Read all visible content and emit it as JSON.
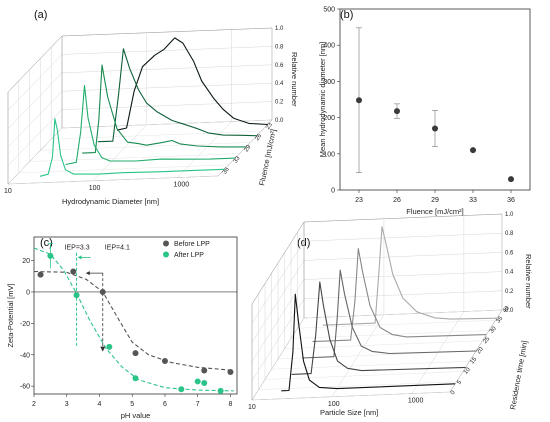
{
  "panels": {
    "a": {
      "label": "(a)"
    },
    "b": {
      "label": "(b)"
    },
    "c": {
      "label": "(c)"
    },
    "d": {
      "label": "(d)"
    }
  },
  "chart_data": [
    {
      "id": "a",
      "type": "line",
      "projection": "3d-waterfall",
      "title": "",
      "xlabel": "Hydrodynamic Diameter [nm]",
      "ylabel": "Fluence [mJ/cm²]",
      "zlabel": "Relative number",
      "x_scale": "log",
      "x_ticks": [
        "10",
        "100",
        "1000"
      ],
      "y_ticks": [
        "23",
        "26",
        "29",
        "33",
        "36"
      ],
      "z_ticks": [
        "0.0",
        "0.2",
        "0.4",
        "0.6",
        "0.8",
        "1.0"
      ],
      "z_range": [
        0,
        1
      ],
      "series": [
        {
          "fluence": "36",
          "color": "#2bc488",
          "points": [
            [
              20,
              0
            ],
            [
              25,
              0.02
            ],
            [
              28,
              0.2
            ],
            [
              30,
              0.62
            ],
            [
              32,
              0.5
            ],
            [
              35,
              0.22
            ],
            [
              40,
              0.06
            ],
            [
              50,
              0.01
            ],
            [
              100,
              0
            ],
            [
              200,
              0.005
            ],
            [
              500,
              0
            ],
            [
              1000,
              0
            ],
            [
              3000,
              0
            ]
          ]
        },
        {
          "fluence": "33",
          "color": "#1fae6b",
          "points": [
            [
              30,
              0
            ],
            [
              40,
              0.02
            ],
            [
              45,
              0.35
            ],
            [
              50,
              0.85
            ],
            [
              55,
              0.5
            ],
            [
              65,
              0.2
            ],
            [
              80,
              0.06
            ],
            [
              100,
              0.02
            ],
            [
              200,
              0.01
            ],
            [
              400,
              0.02
            ],
            [
              700,
              0.01
            ],
            [
              1500,
              0
            ],
            [
              3000,
              0
            ]
          ]
        },
        {
          "fluence": "29",
          "color": "#178a50",
          "points": [
            [
              35,
              0
            ],
            [
              50,
              0
            ],
            [
              55,
              0.35
            ],
            [
              60,
              0.95
            ],
            [
              70,
              0.6
            ],
            [
              90,
              0.25
            ],
            [
              120,
              0.1
            ],
            [
              160,
              0.08
            ],
            [
              200,
              0.06
            ],
            [
              300,
              0.08
            ],
            [
              400,
              0.1
            ],
            [
              500,
              0.06
            ],
            [
              800,
              0.03
            ],
            [
              1500,
              0.01
            ],
            [
              3000,
              0
            ]
          ]
        },
        {
          "fluence": "26",
          "color": "#10603a",
          "points": [
            [
              40,
              0
            ],
            [
              60,
              0
            ],
            [
              70,
              0.5
            ],
            [
              80,
              1.0
            ],
            [
              95,
              0.78
            ],
            [
              120,
              0.55
            ],
            [
              150,
              0.4
            ],
            [
              200,
              0.3
            ],
            [
              300,
              0.2
            ],
            [
              400,
              0.16
            ],
            [
              600,
              0.1
            ],
            [
              800,
              0.05
            ],
            [
              1200,
              0.02
            ],
            [
              2000,
              0.01
            ],
            [
              3000,
              0
            ]
          ]
        },
        {
          "fluence": "23",
          "color": "#0b1a12",
          "points": [
            [
              50,
              0
            ],
            [
              65,
              0.02
            ],
            [
              80,
              0.42
            ],
            [
              100,
              0.68
            ],
            [
              140,
              0.8
            ],
            [
              180,
              0.86
            ],
            [
              240,
              0.98
            ],
            [
              300,
              0.92
            ],
            [
              400,
              0.72
            ],
            [
              500,
              0.5
            ],
            [
              700,
              0.3
            ],
            [
              900,
              0.18
            ],
            [
              1200,
              0.08
            ],
            [
              1800,
              0.02
            ],
            [
              3000,
              0
            ]
          ]
        }
      ]
    },
    {
      "id": "b",
      "type": "scatter",
      "title": "",
      "xlabel": "Fluence [mJ/cm²]",
      "ylabel": "Mean hydrodynamic diameter [nm]",
      "ylim": [
        0,
        500
      ],
      "y_ticks": [
        "0",
        "100",
        "200",
        "300",
        "400",
        "500"
      ],
      "categories": [
        "23",
        "26",
        "29",
        "33",
        "36"
      ],
      "values": [
        248,
        218,
        170,
        110,
        30
      ],
      "error": [
        200,
        20,
        50,
        0,
        0
      ],
      "color": "#3a3a3a"
    },
    {
      "id": "c",
      "type": "scatter",
      "title": "",
      "xlabel": "pH value",
      "ylabel": "Zeta-Potential [mV]",
      "xlim": [
        2,
        8.2
      ],
      "ylim": [
        -65,
        35
      ],
      "x_ticks": [
        "2",
        "3",
        "4",
        "5",
        "6",
        "7",
        "8"
      ],
      "y_ticks": [
        "20",
        "0",
        "-20",
        "-40",
        "-60"
      ],
      "legend_position": "top-right",
      "annotations": [
        {
          "text": "IEP=3.3",
          "x": 3.3,
          "color": "#2bc488"
        },
        {
          "text": "IEP=4.1",
          "x": 4.1,
          "color": "#222222"
        }
      ],
      "series": [
        {
          "name": "Before LPP",
          "color": "#555555",
          "x": [
            2.2,
            3.2,
            4.1,
            5.1,
            6.0,
            7.2,
            8.0
          ],
          "y": [
            11,
            13,
            0,
            -39,
            -44,
            -50,
            -51
          ],
          "fit": [
            [
              2.0,
              13
            ],
            [
              3.0,
              12.5
            ],
            [
              3.6,
              8
            ],
            [
              4.1,
              0
            ],
            [
              4.6,
              -18
            ],
            [
              5.0,
              -32
            ],
            [
              5.5,
              -40
            ],
            [
              6.2,
              -45
            ],
            [
              7.0,
              -48
            ],
            [
              8.1,
              -50
            ]
          ]
        },
        {
          "name": "After LPP",
          "color": "#2bc488",
          "x": [
            2.5,
            3.3,
            4.3,
            5.1,
            6.5,
            7.0,
            7.2,
            7.7
          ],
          "y": [
            23,
            -2,
            -35,
            -55,
            -62,
            -57,
            -58,
            -63
          ],
          "y_err": [
            8,
            0,
            0,
            0,
            0,
            0,
            0,
            0
          ],
          "fit": [
            [
              2.0,
              28
            ],
            [
              2.5,
              24
            ],
            [
              2.9,
              14
            ],
            [
              3.3,
              -1
            ],
            [
              3.7,
              -18
            ],
            [
              4.2,
              -36
            ],
            [
              4.7,
              -48
            ],
            [
              5.2,
              -56
            ],
            [
              6.0,
              -61
            ],
            [
              7.0,
              -62.5
            ],
            [
              8.1,
              -63
            ]
          ]
        }
      ]
    },
    {
      "id": "d",
      "type": "line",
      "projection": "3d-waterfall",
      "title": "",
      "xlabel": "Particle Size [nm]",
      "ylabel": "Residence time [min]",
      "zlabel": "Relative number",
      "x_scale": "log",
      "x_ticks": [
        "10",
        "100",
        "1000"
      ],
      "y_ticks": [
        "0",
        "5",
        "10",
        "15",
        "20",
        "25",
        "30",
        "35",
        "40"
      ],
      "z_ticks": [
        "0.0",
        "0.2",
        "0.4",
        "0.6",
        "0.8",
        "1.0"
      ],
      "z_range": [
        0,
        1
      ],
      "series": [
        {
          "time": "0",
          "color": "#111111",
          "points": [
            [
              20,
              0
            ],
            [
              25,
              0
            ],
            [
              28,
              0.4
            ],
            [
              30,
              1.0
            ],
            [
              33,
              0.7
            ],
            [
              38,
              0.3
            ],
            [
              45,
              0.1
            ],
            [
              60,
              0.02
            ],
            [
              100,
              0
            ],
            [
              3000,
              0
            ]
          ]
        },
        {
          "time": "10",
          "color": "#444444",
          "points": [
            [
              20,
              0
            ],
            [
              35,
              0
            ],
            [
              40,
              0.4
            ],
            [
              45,
              0.95
            ],
            [
              50,
              0.7
            ],
            [
              60,
              0.35
            ],
            [
              75,
              0.12
            ],
            [
              100,
              0.04
            ],
            [
              150,
              0.01
            ],
            [
              3000,
              0
            ]
          ]
        },
        {
          "time": "20",
          "color": "#666666",
          "points": [
            [
              20,
              0
            ],
            [
              50,
              0
            ],
            [
              55,
              0.4
            ],
            [
              60,
              0.9
            ],
            [
              68,
              0.65
            ],
            [
              85,
              0.3
            ],
            [
              110,
              0.1
            ],
            [
              150,
              0.04
            ],
            [
              250,
              0.01
            ],
            [
              3000,
              0
            ]
          ]
        },
        {
          "time": "30",
          "color": "#888888",
          "points": [
            [
              20,
              0
            ],
            [
              60,
              0
            ],
            [
              68,
              0.4
            ],
            [
              75,
              0.95
            ],
            [
              85,
              0.7
            ],
            [
              105,
              0.35
            ],
            [
              140,
              0.12
            ],
            [
              200,
              0.04
            ],
            [
              300,
              0.01
            ],
            [
              3000,
              0
            ]
          ]
        },
        {
          "time": "40",
          "color": "#aaaaaa",
          "points": [
            [
              20,
              0
            ],
            [
              90,
              0
            ],
            [
              100,
              0.5
            ],
            [
              110,
              1.0
            ],
            [
              125,
              0.8
            ],
            [
              150,
              0.5
            ],
            [
              200,
              0.25
            ],
            [
              300,
              0.1
            ],
            [
              500,
              0.03
            ],
            [
              800,
              0.01
            ],
            [
              3000,
              0
            ]
          ]
        }
      ]
    }
  ]
}
